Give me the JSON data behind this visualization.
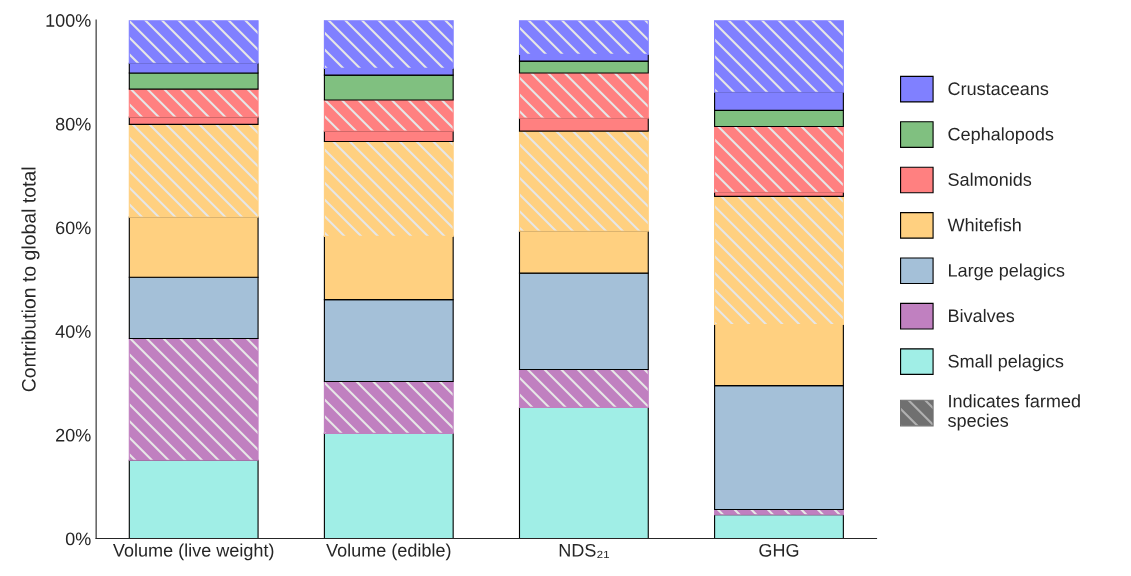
{
  "chart_data": {
    "type": "bar",
    "stacked": true,
    "ylabel": "Contribution to global total",
    "categories": [
      "Volume (live weight)",
      "Volume (edible)",
      "NDS₂₁",
      "GHG"
    ],
    "ylim": [
      0,
      100
    ],
    "yticks": [
      {
        "value": 0,
        "label": "0%"
      },
      {
        "value": 20,
        "label": "20%"
      },
      {
        "value": 40,
        "label": "40%"
      },
      {
        "value": 60,
        "label": "60%"
      },
      {
        "value": 80,
        "label": "80%"
      },
      {
        "value": 100,
        "label": "100%"
      }
    ],
    "grid": false,
    "legend": "right",
    "annotations": [
      "Indicates farmed species"
    ],
    "series": [
      {
        "name": "Small pelagics",
        "color": "#a0eee6",
        "values": [
          15.1,
          20.3,
          25.3,
          4.6
        ]
      },
      {
        "name": "Bivalves",
        "color": "#c080c0",
        "values": [
          null,
          null,
          null,
          null
        ]
      },
      {
        "color": "#c080c0",
        "values": [
          23.5,
          10.0,
          7.3,
          1.0
        ]
      },
      {
        "name": "Large pelagics",
        "color": "#a4c0d8",
        "values": [
          11.8,
          15.8,
          18.6,
          23.9
        ]
      },
      {
        "name": "Whitefish",
        "color": "#ffd080",
        "values": [
          11.6,
          12.2,
          8.1,
          11.8
        ]
      },
      {
        "color": "#ffd080",
        "values": [
          17.9,
          18.3,
          19.3,
          24.7
        ]
      },
      {
        "name": "Salmonids",
        "color": "#ff8080",
        "values": [
          1.4,
          2.0,
          2.5,
          0.8
        ]
      },
      {
        "color": "#ff8080",
        "values": [
          5.4,
          6.0,
          8.7,
          12.7
        ]
      },
      {
        "name": "Cephalopods",
        "color": "#80c080",
        "values": [
          3.1,
          4.8,
          2.3,
          3.1
        ]
      },
      {
        "name": "Crustaceans",
        "color": "#8080ff",
        "values": [
          1.9,
          1.3,
          1.3,
          3.5
        ]
      },
      {
        "color": "#8080ff",
        "values": [
          8.3,
          9.3,
          6.6,
          13.9
        ]
      }
    ]
  }
}
